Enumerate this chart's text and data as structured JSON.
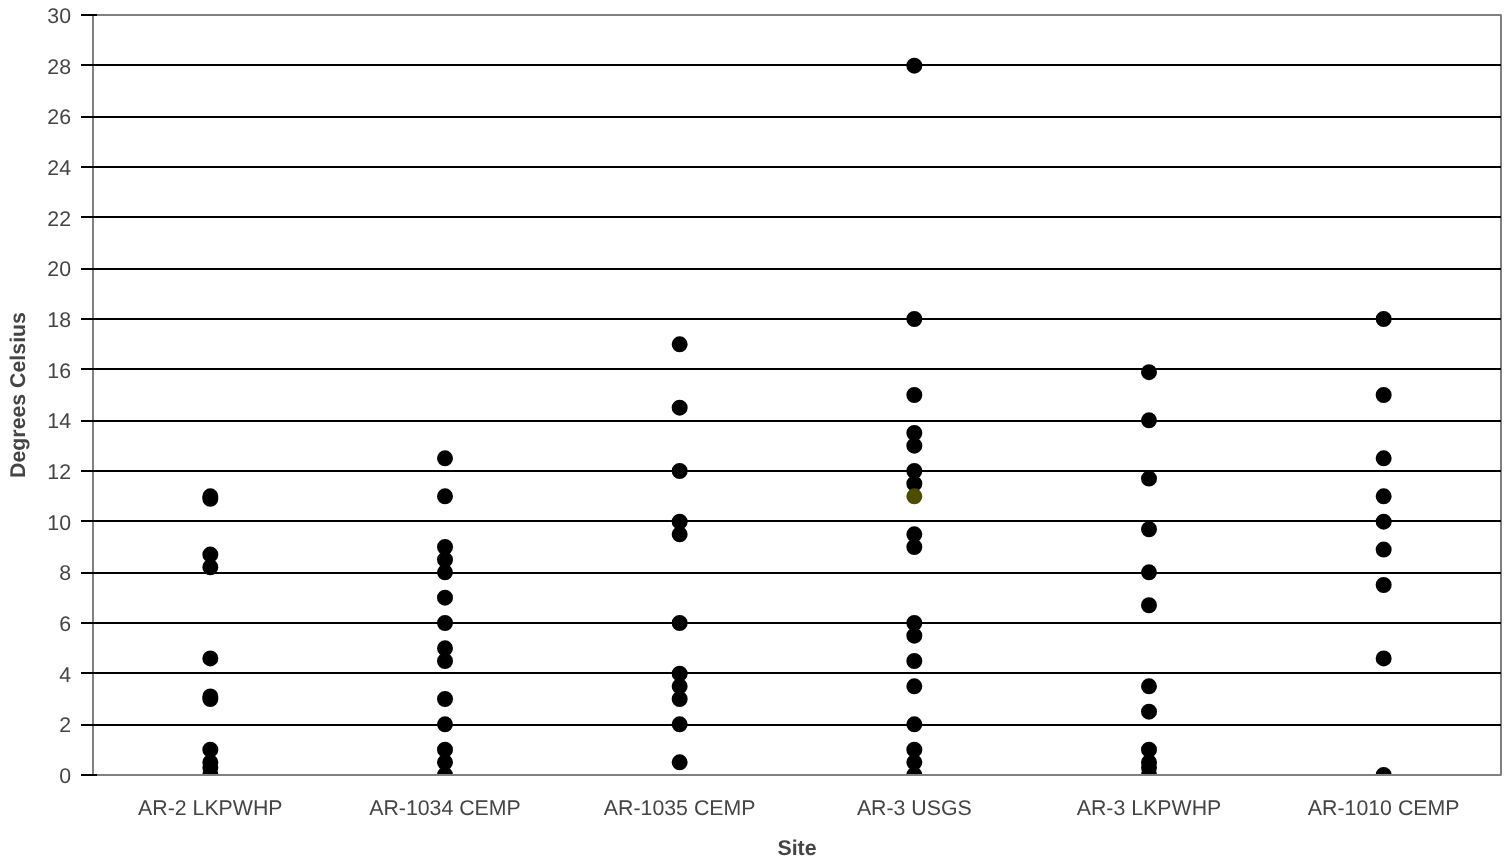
{
  "chart_data": {
    "type": "scatter",
    "xlabel": "Site",
    "ylabel": "Degrees Celsius",
    "categories": [
      "AR-2 LKPWHP",
      "AR-1034 CEMP",
      "AR-1035 CEMP",
      "AR-3 USGS",
      "AR-3 LKPWHP",
      "AR-1010 CEMP"
    ],
    "ylim": [
      0,
      30
    ],
    "yticks": [
      0,
      2,
      4,
      6,
      8,
      10,
      12,
      14,
      16,
      18,
      20,
      22,
      24,
      26,
      28,
      30
    ],
    "grid": "y",
    "marker": "circle",
    "series": [
      {
        "color": "#000000",
        "x": [
          "AR-2 LKPWHP",
          "AR-2 LKPWHP",
          "AR-2 LKPWHP",
          "AR-2 LKPWHP",
          "AR-2 LKPWHP",
          "AR-2 LKPWHP",
          "AR-2 LKPWHP",
          "AR-2 LKPWHP",
          "AR-2 LKPWHP",
          "AR-2 LKPWHP",
          "AR-2 LKPWHP",
          "AR-1034 CEMP",
          "AR-1034 CEMP",
          "AR-1034 CEMP",
          "AR-1034 CEMP",
          "AR-1034 CEMP",
          "AR-1034 CEMP",
          "AR-1034 CEMP",
          "AR-1034 CEMP",
          "AR-1034 CEMP",
          "AR-1034 CEMP",
          "AR-1034 CEMP",
          "AR-1034 CEMP",
          "AR-1034 CEMP",
          "AR-1034 CEMP",
          "AR-1035 CEMP",
          "AR-1035 CEMP",
          "AR-1035 CEMP",
          "AR-1035 CEMP",
          "AR-1035 CEMP",
          "AR-1035 CEMP",
          "AR-1035 CEMP",
          "AR-1035 CEMP",
          "AR-1035 CEMP",
          "AR-1035 CEMP",
          "AR-1035 CEMP",
          "AR-3 USGS",
          "AR-3 USGS",
          "AR-3 USGS",
          "AR-3 USGS",
          "AR-3 USGS",
          "AR-3 USGS",
          "AR-3 USGS",
          "AR-3 USGS",
          "AR-3 USGS",
          "AR-3 USGS",
          "AR-3 USGS",
          "AR-3 USGS",
          "AR-3 USGS",
          "AR-3 USGS",
          "AR-3 USGS",
          "AR-3 USGS",
          "AR-3 USGS",
          "AR-3 LKPWHP",
          "AR-3 LKPWHP",
          "AR-3 LKPWHP",
          "AR-3 LKPWHP",
          "AR-3 LKPWHP",
          "AR-3 LKPWHP",
          "AR-3 LKPWHP",
          "AR-3 LKPWHP",
          "AR-3 LKPWHP",
          "AR-3 LKPWHP",
          "AR-3 LKPWHP",
          "AR-3 LKPWHP",
          "AR-1010 CEMP",
          "AR-1010 CEMP",
          "AR-1010 CEMP",
          "AR-1010 CEMP",
          "AR-1010 CEMP",
          "AR-1010 CEMP",
          "AR-1010 CEMP",
          "AR-1010 CEMP",
          "AR-1010 CEMP"
        ],
        "values": [
          11.0,
          10.9,
          8.7,
          8.2,
          4.6,
          3.1,
          3.0,
          1.0,
          0.5,
          0.3,
          0,
          12.5,
          11,
          9,
          8.5,
          8,
          7,
          6,
          5,
          4.5,
          3,
          2,
          1,
          0.5,
          0,
          17,
          14.5,
          12,
          10,
          9.5,
          6,
          4,
          3.5,
          3,
          2,
          0.5,
          28,
          18,
          15,
          13.5,
          13,
          12,
          11.5,
          9.5,
          9,
          6,
          5.5,
          4.5,
          3.5,
          2,
          1,
          0.5,
          0,
          15.9,
          14,
          11.7,
          9.7,
          8,
          6.7,
          3.5,
          2.5,
          1,
          0.5,
          0.3,
          0,
          18,
          15,
          12.5,
          11,
          10,
          8.9,
          7.5,
          4.6,
          0
        ]
      },
      {
        "color": "#4d4d00",
        "x": [
          "AR-3 USGS"
        ],
        "values": [
          11
        ]
      }
    ]
  }
}
